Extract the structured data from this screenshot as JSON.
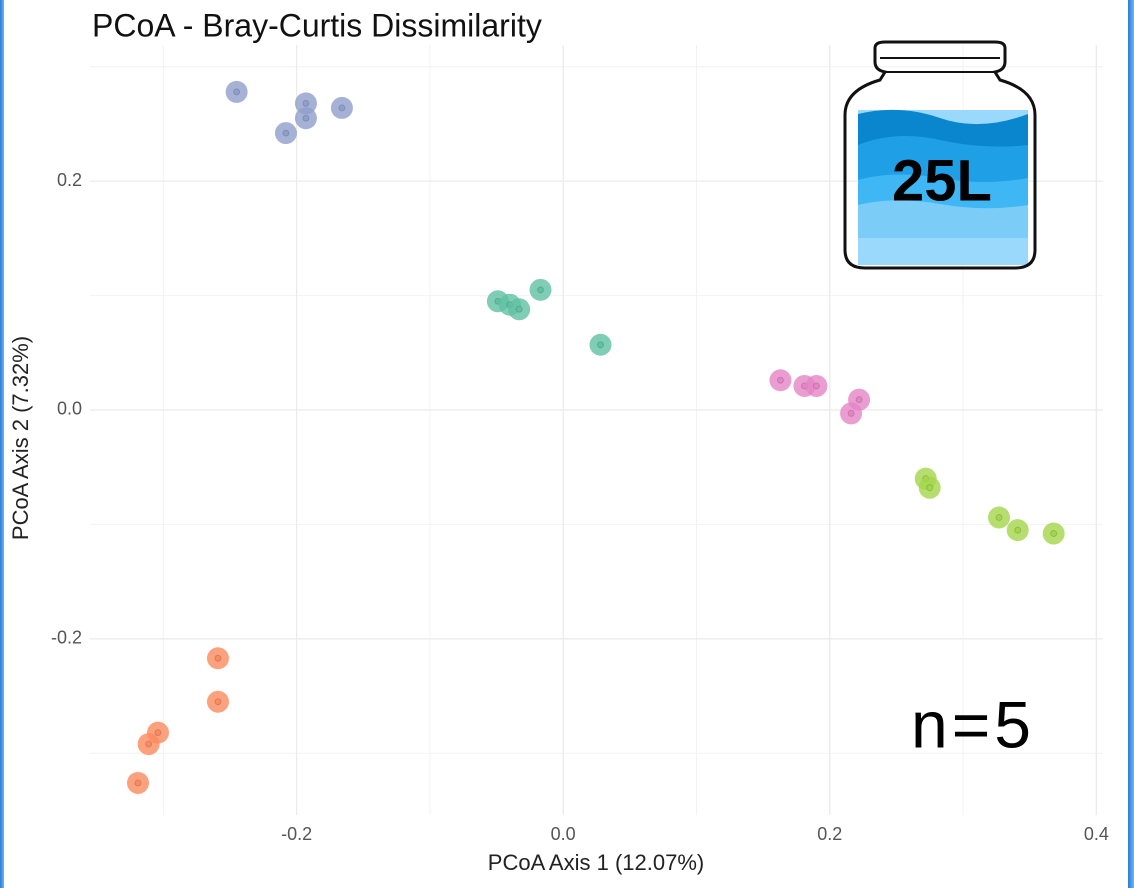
{
  "chart_data": {
    "type": "scatter",
    "title": "PCoA - Bray-Curtis Dissimilarity",
    "xlabel": "PCoA Axis 1 (12.07%)",
    "ylabel": "PCoA Axis 2 (7.32%)",
    "annotations": [
      "25L",
      "n=5"
    ],
    "xlim": [
      -0.355,
      0.405
    ],
    "ylim": [
      -0.354,
      0.319
    ],
    "xticks": [
      -0.2,
      {
        "value": 0,
        "label": "0.0"
      },
      0.2,
      0.4
    ],
    "yticks": [
      -0.2,
      {
        "value": 0,
        "label": "0.0"
      },
      0.2
    ],
    "xminor": [
      -0.3,
      -0.1,
      0.1,
      0.3
    ],
    "yminor": [
      -0.3,
      -0.1,
      0.1,
      0.3
    ],
    "grid": true,
    "series": [
      {
        "color": "#8e9fcc",
        "x": [
          -0.245,
          -0.193,
          -0.193,
          -0.208,
          -0.166
        ],
        "values": [
          0.278,
          0.268,
          0.255,
          0.242,
          0.264
        ]
      },
      {
        "color": "#5fc1a2",
        "x": [
          -0.049,
          -0.04,
          -0.033,
          -0.017,
          0.028
        ],
        "values": [
          0.095,
          0.092,
          0.088,
          0.105,
          0.057
        ]
      },
      {
        "color": "#e584c4",
        "x": [
          0.163,
          0.181,
          0.19,
          0.216,
          0.222
        ],
        "values": [
          0.026,
          0.021,
          0.021,
          -0.003,
          0.009
        ]
      },
      {
        "color": "#a4d64a",
        "x": [
          0.272,
          0.275,
          0.327,
          0.341,
          0.368
        ],
        "values": [
          -0.06,
          -0.068,
          -0.094,
          -0.105,
          -0.108
        ]
      },
      {
        "color": "#fb8a5c",
        "x": [
          -0.259,
          -0.259,
          -0.304,
          -0.311,
          -0.319
        ],
        "values": [
          -0.217,
          -0.255,
          -0.282,
          -0.292,
          -0.326
        ]
      }
    ]
  }
}
